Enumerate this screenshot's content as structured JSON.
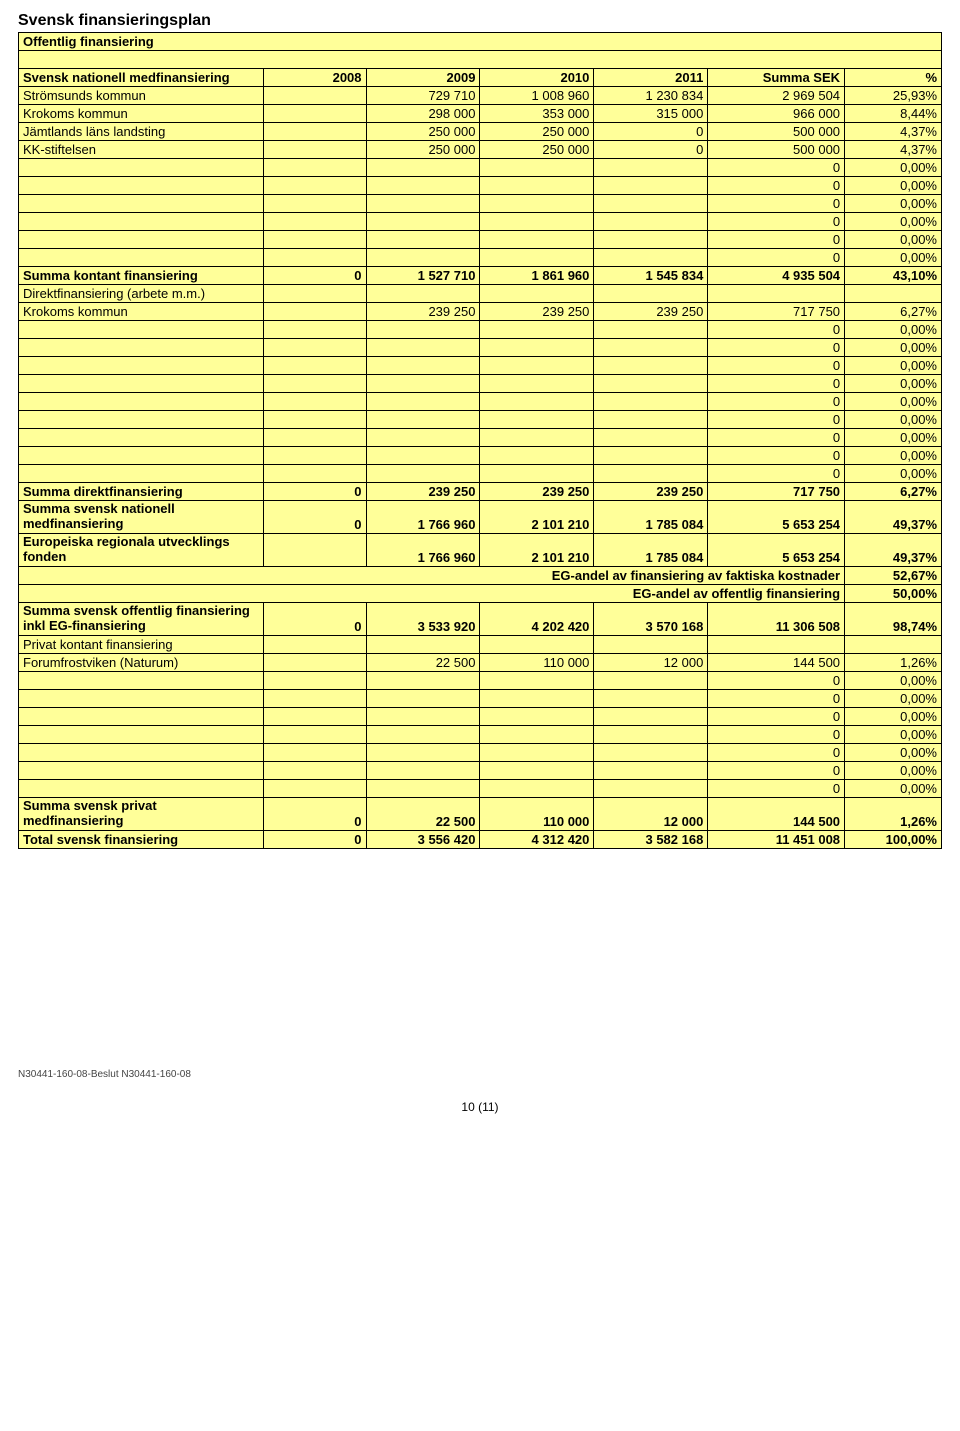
{
  "title": "Svensk finansieringsplan",
  "colors": {
    "cell_bg": "#ffff99",
    "border": "#000000",
    "text": "#000000"
  },
  "columns_year": [
    "2008",
    "2009",
    "2010",
    "2011",
    "Summa SEK",
    "%"
  ],
  "rows": [
    {
      "type": "header_span",
      "text": "Offentlig finansiering",
      "bold": true
    },
    {
      "type": "blank"
    },
    {
      "type": "header",
      "label": "Svensk nationell medfinansiering",
      "bold": true
    },
    {
      "type": "data",
      "label": "Strömsunds kommun",
      "v": [
        "",
        "729 710",
        "1 008 960",
        "1 230 834",
        "2 969 504",
        "25,93%"
      ]
    },
    {
      "type": "data",
      "label": "Krokoms kommun",
      "v": [
        "",
        "298 000",
        "353 000",
        "315 000",
        "966 000",
        "8,44%"
      ]
    },
    {
      "type": "data",
      "label": "Jämtlands läns landsting",
      "v": [
        "",
        "250 000",
        "250 000",
        "0",
        "500 000",
        "4,37%"
      ]
    },
    {
      "type": "data",
      "label": "KK-stiftelsen",
      "v": [
        "",
        "250 000",
        "250 000",
        "0",
        "500 000",
        "4,37%"
      ]
    },
    {
      "type": "data",
      "label": "",
      "v": [
        "",
        "",
        "",
        "",
        "0",
        "0,00%"
      ]
    },
    {
      "type": "data",
      "label": "",
      "v": [
        "",
        "",
        "",
        "",
        "0",
        "0,00%"
      ]
    },
    {
      "type": "data",
      "label": "",
      "v": [
        "",
        "",
        "",
        "",
        "0",
        "0,00%"
      ]
    },
    {
      "type": "data",
      "label": "",
      "v": [
        "",
        "",
        "",
        "",
        "0",
        "0,00%"
      ]
    },
    {
      "type": "data",
      "label": "",
      "v": [
        "",
        "",
        "",
        "",
        "0",
        "0,00%"
      ]
    },
    {
      "type": "data",
      "label": "",
      "v": [
        "",
        "",
        "",
        "",
        "0",
        "0,00%"
      ]
    },
    {
      "type": "data",
      "label": "Summa kontant finansiering",
      "bold": true,
      "v": [
        "0",
        "1 527 710",
        "1 861 960",
        "1 545 834",
        "4 935 504",
        "43,10%"
      ]
    },
    {
      "type": "label_only",
      "label": "Direktfinansiering (arbete m.m.)"
    },
    {
      "type": "data",
      "label": "Krokoms kommun",
      "v": [
        "",
        "239 250",
        "239 250",
        "239 250",
        "717 750",
        "6,27%"
      ]
    },
    {
      "type": "data",
      "label": "",
      "v": [
        "",
        "",
        "",
        "",
        "0",
        "0,00%"
      ]
    },
    {
      "type": "data",
      "label": "",
      "v": [
        "",
        "",
        "",
        "",
        "0",
        "0,00%"
      ]
    },
    {
      "type": "data",
      "label": "",
      "v": [
        "",
        "",
        "",
        "",
        "0",
        "0,00%"
      ]
    },
    {
      "type": "data",
      "label": "",
      "v": [
        "",
        "",
        "",
        "",
        "0",
        "0,00%"
      ]
    },
    {
      "type": "data",
      "label": "",
      "v": [
        "",
        "",
        "",
        "",
        "0",
        "0,00%"
      ]
    },
    {
      "type": "data",
      "label": "",
      "v": [
        "",
        "",
        "",
        "",
        "0",
        "0,00%"
      ]
    },
    {
      "type": "data",
      "label": "",
      "v": [
        "",
        "",
        "",
        "",
        "0",
        "0,00%"
      ]
    },
    {
      "type": "data",
      "label": "",
      "v": [
        "",
        "",
        "",
        "",
        "0",
        "0,00%"
      ]
    },
    {
      "type": "data",
      "label": "",
      "v": [
        "",
        "",
        "",
        "",
        "0",
        "0,00%"
      ]
    },
    {
      "type": "data",
      "label": "Summa direktfinansiering",
      "bold": true,
      "v": [
        "0",
        "239 250",
        "239 250",
        "239 250",
        "717 750",
        "6,27%"
      ]
    },
    {
      "type": "data",
      "label": "Summa svensk nationell medfinansiering",
      "bold": true,
      "wrap": true,
      "v": [
        "0",
        "1 766 960",
        "2 101 210",
        "1 785 084",
        "5 653 254",
        "49,37%"
      ]
    },
    {
      "type": "data",
      "label": "Europeiska regionala utvecklings fonden",
      "bold": true,
      "wrap": true,
      "v": [
        "",
        "1 766 960",
        "2 101 210",
        "1 785 084",
        "5 653 254",
        "49,37%"
      ]
    },
    {
      "type": "right_span",
      "text": "EG-andel av finansiering av faktiska kostnader",
      "pct": "52,67%",
      "bold": true
    },
    {
      "type": "right_span",
      "text": "EG-andel av offentlig finansiering",
      "pct": "50,00%",
      "bold": true
    },
    {
      "type": "data",
      "label": "Summa svensk offentlig finansiering inkl EG-finansiering",
      "bold": true,
      "wrap": true,
      "v": [
        "0",
        "3 533 920",
        "4 202 420",
        "3 570 168",
        "11 306 508",
        "98,74%"
      ]
    },
    {
      "type": "label_only",
      "label": "Privat kontant finansiering"
    },
    {
      "type": "data",
      "label": "Forumfrostviken (Naturum)",
      "v": [
        "",
        "22 500",
        "110 000",
        "12 000",
        "144 500",
        "1,26%"
      ]
    },
    {
      "type": "data",
      "label": "",
      "v": [
        "",
        "",
        "",
        "",
        "0",
        "0,00%"
      ]
    },
    {
      "type": "data",
      "label": "",
      "v": [
        "",
        "",
        "",
        "",
        "0",
        "0,00%"
      ]
    },
    {
      "type": "data",
      "label": "",
      "v": [
        "",
        "",
        "",
        "",
        "0",
        "0,00%"
      ]
    },
    {
      "type": "data",
      "label": "",
      "v": [
        "",
        "",
        "",
        "",
        "0",
        "0,00%"
      ]
    },
    {
      "type": "data",
      "label": "",
      "v": [
        "",
        "",
        "",
        "",
        "0",
        "0,00%"
      ]
    },
    {
      "type": "data",
      "label": "",
      "v": [
        "",
        "",
        "",
        "",
        "0",
        "0,00%"
      ]
    },
    {
      "type": "data",
      "label": "",
      "v": [
        "",
        "",
        "",
        "",
        "0",
        "0,00%"
      ]
    },
    {
      "type": "data",
      "label": "Summa svensk privat medfinansiering",
      "bold": true,
      "wrap": true,
      "v": [
        "0",
        "22 500",
        "110 000",
        "12 000",
        "144 500",
        "1,26%"
      ]
    },
    {
      "type": "data",
      "label": "Total svensk finansiering",
      "bold": true,
      "v": [
        "0",
        "3 556 420",
        "4 312 420",
        "3 582 168",
        "11 451 008",
        "100,00%"
      ]
    }
  ],
  "footer_left": "N30441-160-08-Beslut N30441-160-08",
  "page_number": "10 (11)"
}
